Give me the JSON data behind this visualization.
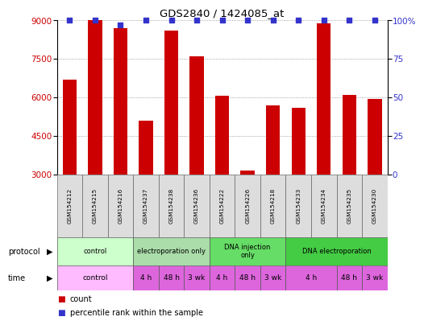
{
  "title": "GDS2840 / 1424085_at",
  "samples": [
    "GSM154212",
    "GSM154215",
    "GSM154216",
    "GSM154237",
    "GSM154238",
    "GSM154236",
    "GSM154222",
    "GSM154226",
    "GSM154218",
    "GSM154233",
    "GSM154234",
    "GSM154235",
    "GSM154230"
  ],
  "counts": [
    6700,
    9000,
    8700,
    5100,
    8600,
    7600,
    6050,
    3150,
    5700,
    5600,
    8900,
    6100,
    5950
  ],
  "percentile_ranks": [
    100,
    100,
    97,
    100,
    100,
    100,
    100,
    100,
    100,
    100,
    100,
    100,
    100
  ],
  "bar_color": "#cc0000",
  "pct_color": "#3333cc",
  "ylim_left": [
    3000,
    9000
  ],
  "ylim_right": [
    0,
    100
  ],
  "yticks_left": [
    3000,
    4500,
    6000,
    7500,
    9000
  ],
  "yticks_right": [
    0,
    25,
    50,
    75,
    100
  ],
  "protocol_groups": [
    {
      "label": "control",
      "start": 0,
      "end": 3,
      "color": "#ccffcc"
    },
    {
      "label": "electroporation only",
      "start": 3,
      "end": 6,
      "color": "#aaddaa"
    },
    {
      "label": "DNA injection\nonly",
      "start": 6,
      "end": 9,
      "color": "#66dd66"
    },
    {
      "label": "DNA electroporation",
      "start": 9,
      "end": 13,
      "color": "#44cc44"
    }
  ],
  "time_groups": [
    {
      "label": "control",
      "start": 0,
      "end": 3,
      "color": "#ffbbff"
    },
    {
      "label": "4 h",
      "start": 3,
      "end": 4,
      "color": "#dd66dd"
    },
    {
      "label": "48 h",
      "start": 4,
      "end": 5,
      "color": "#dd66dd"
    },
    {
      "label": "3 wk",
      "start": 5,
      "end": 6,
      "color": "#dd66dd"
    },
    {
      "label": "4 h",
      "start": 6,
      "end": 7,
      "color": "#dd66dd"
    },
    {
      "label": "48 h",
      "start": 7,
      "end": 8,
      "color": "#dd66dd"
    },
    {
      "label": "3 wk",
      "start": 8,
      "end": 9,
      "color": "#dd66dd"
    },
    {
      "label": "4 h",
      "start": 9,
      "end": 11,
      "color": "#dd66dd"
    },
    {
      "label": "48 h",
      "start": 11,
      "end": 12,
      "color": "#dd66dd"
    },
    {
      "label": "3 wk",
      "start": 12,
      "end": 13,
      "color": "#dd66dd"
    }
  ],
  "legend_items": [
    {
      "label": "count",
      "color": "#cc0000"
    },
    {
      "label": "percentile rank within the sample",
      "color": "#3333cc"
    }
  ],
  "background_color": "#ffffff",
  "grid_color": "#888888",
  "sample_box_color": "#dddddd"
}
